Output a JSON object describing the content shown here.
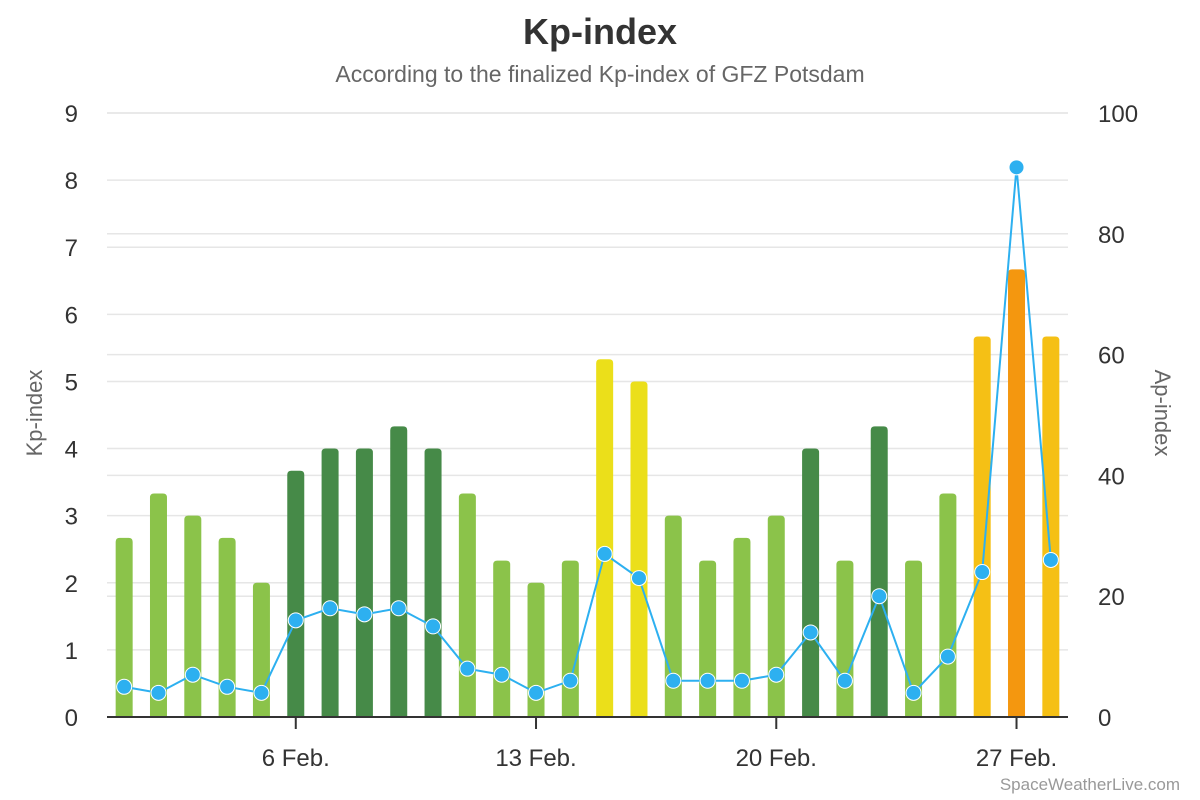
{
  "chart_data": {
    "type": "bar",
    "title": "Kp-index",
    "subtitle": "According to the finalized Kp-index of GFZ Potsdam",
    "ylabel": "Kp-index",
    "y2label": "Ap-index",
    "ylim": [
      0,
      9
    ],
    "y2lim": [
      0,
      100
    ],
    "yticks": [
      "0",
      "1",
      "2",
      "3",
      "4",
      "5",
      "6",
      "7",
      "8",
      "9"
    ],
    "y2ticks": [
      "0",
      "20",
      "40",
      "60",
      "80",
      "100"
    ],
    "xticks": [
      {
        "index": 5,
        "label": "6 Feb."
      },
      {
        "index": 12,
        "label": "13 Feb."
      },
      {
        "index": 19,
        "label": "20 Feb."
      },
      {
        "index": 26,
        "label": "27 Feb."
      }
    ],
    "grid": true,
    "series": [
      {
        "type": "bar",
        "values": [
          2.67,
          3.33,
          3.0,
          2.67,
          2.0,
          3.67,
          4.0,
          4.0,
          4.33,
          4.0,
          3.33,
          2.33,
          2.0,
          2.33,
          5.33,
          5.0,
          3.0,
          2.33,
          2.67,
          3.0,
          4.0,
          2.33,
          4.33,
          2.33,
          3.33,
          5.67,
          6.67,
          5.67
        ],
        "colors": [
          "#8bc34a",
          "#8bc34a",
          "#8bc34a",
          "#8bc34a",
          "#8bc34a",
          "#468a48",
          "#468a48",
          "#468a48",
          "#468a48",
          "#468a48",
          "#8bc34a",
          "#8bc34a",
          "#8bc34a",
          "#8bc34a",
          "#ebdf1a",
          "#ebdf1a",
          "#8bc34a",
          "#8bc34a",
          "#8bc34a",
          "#8bc34a",
          "#468a48",
          "#8bc34a",
          "#468a48",
          "#8bc34a",
          "#8bc34a",
          "#f5c015",
          "#f4970f",
          "#f5c015"
        ]
      },
      {
        "type": "line",
        "axis": "right",
        "color": "#2db0f0",
        "values": [
          5,
          4,
          7,
          5,
          4,
          16,
          18,
          17,
          18,
          15,
          8,
          7,
          4,
          6,
          27,
          23,
          6,
          6,
          6,
          7,
          14,
          6,
          20,
          4,
          10,
          24,
          91,
          26
        ]
      }
    ]
  },
  "credit": "SpaceWeatherLive.com"
}
